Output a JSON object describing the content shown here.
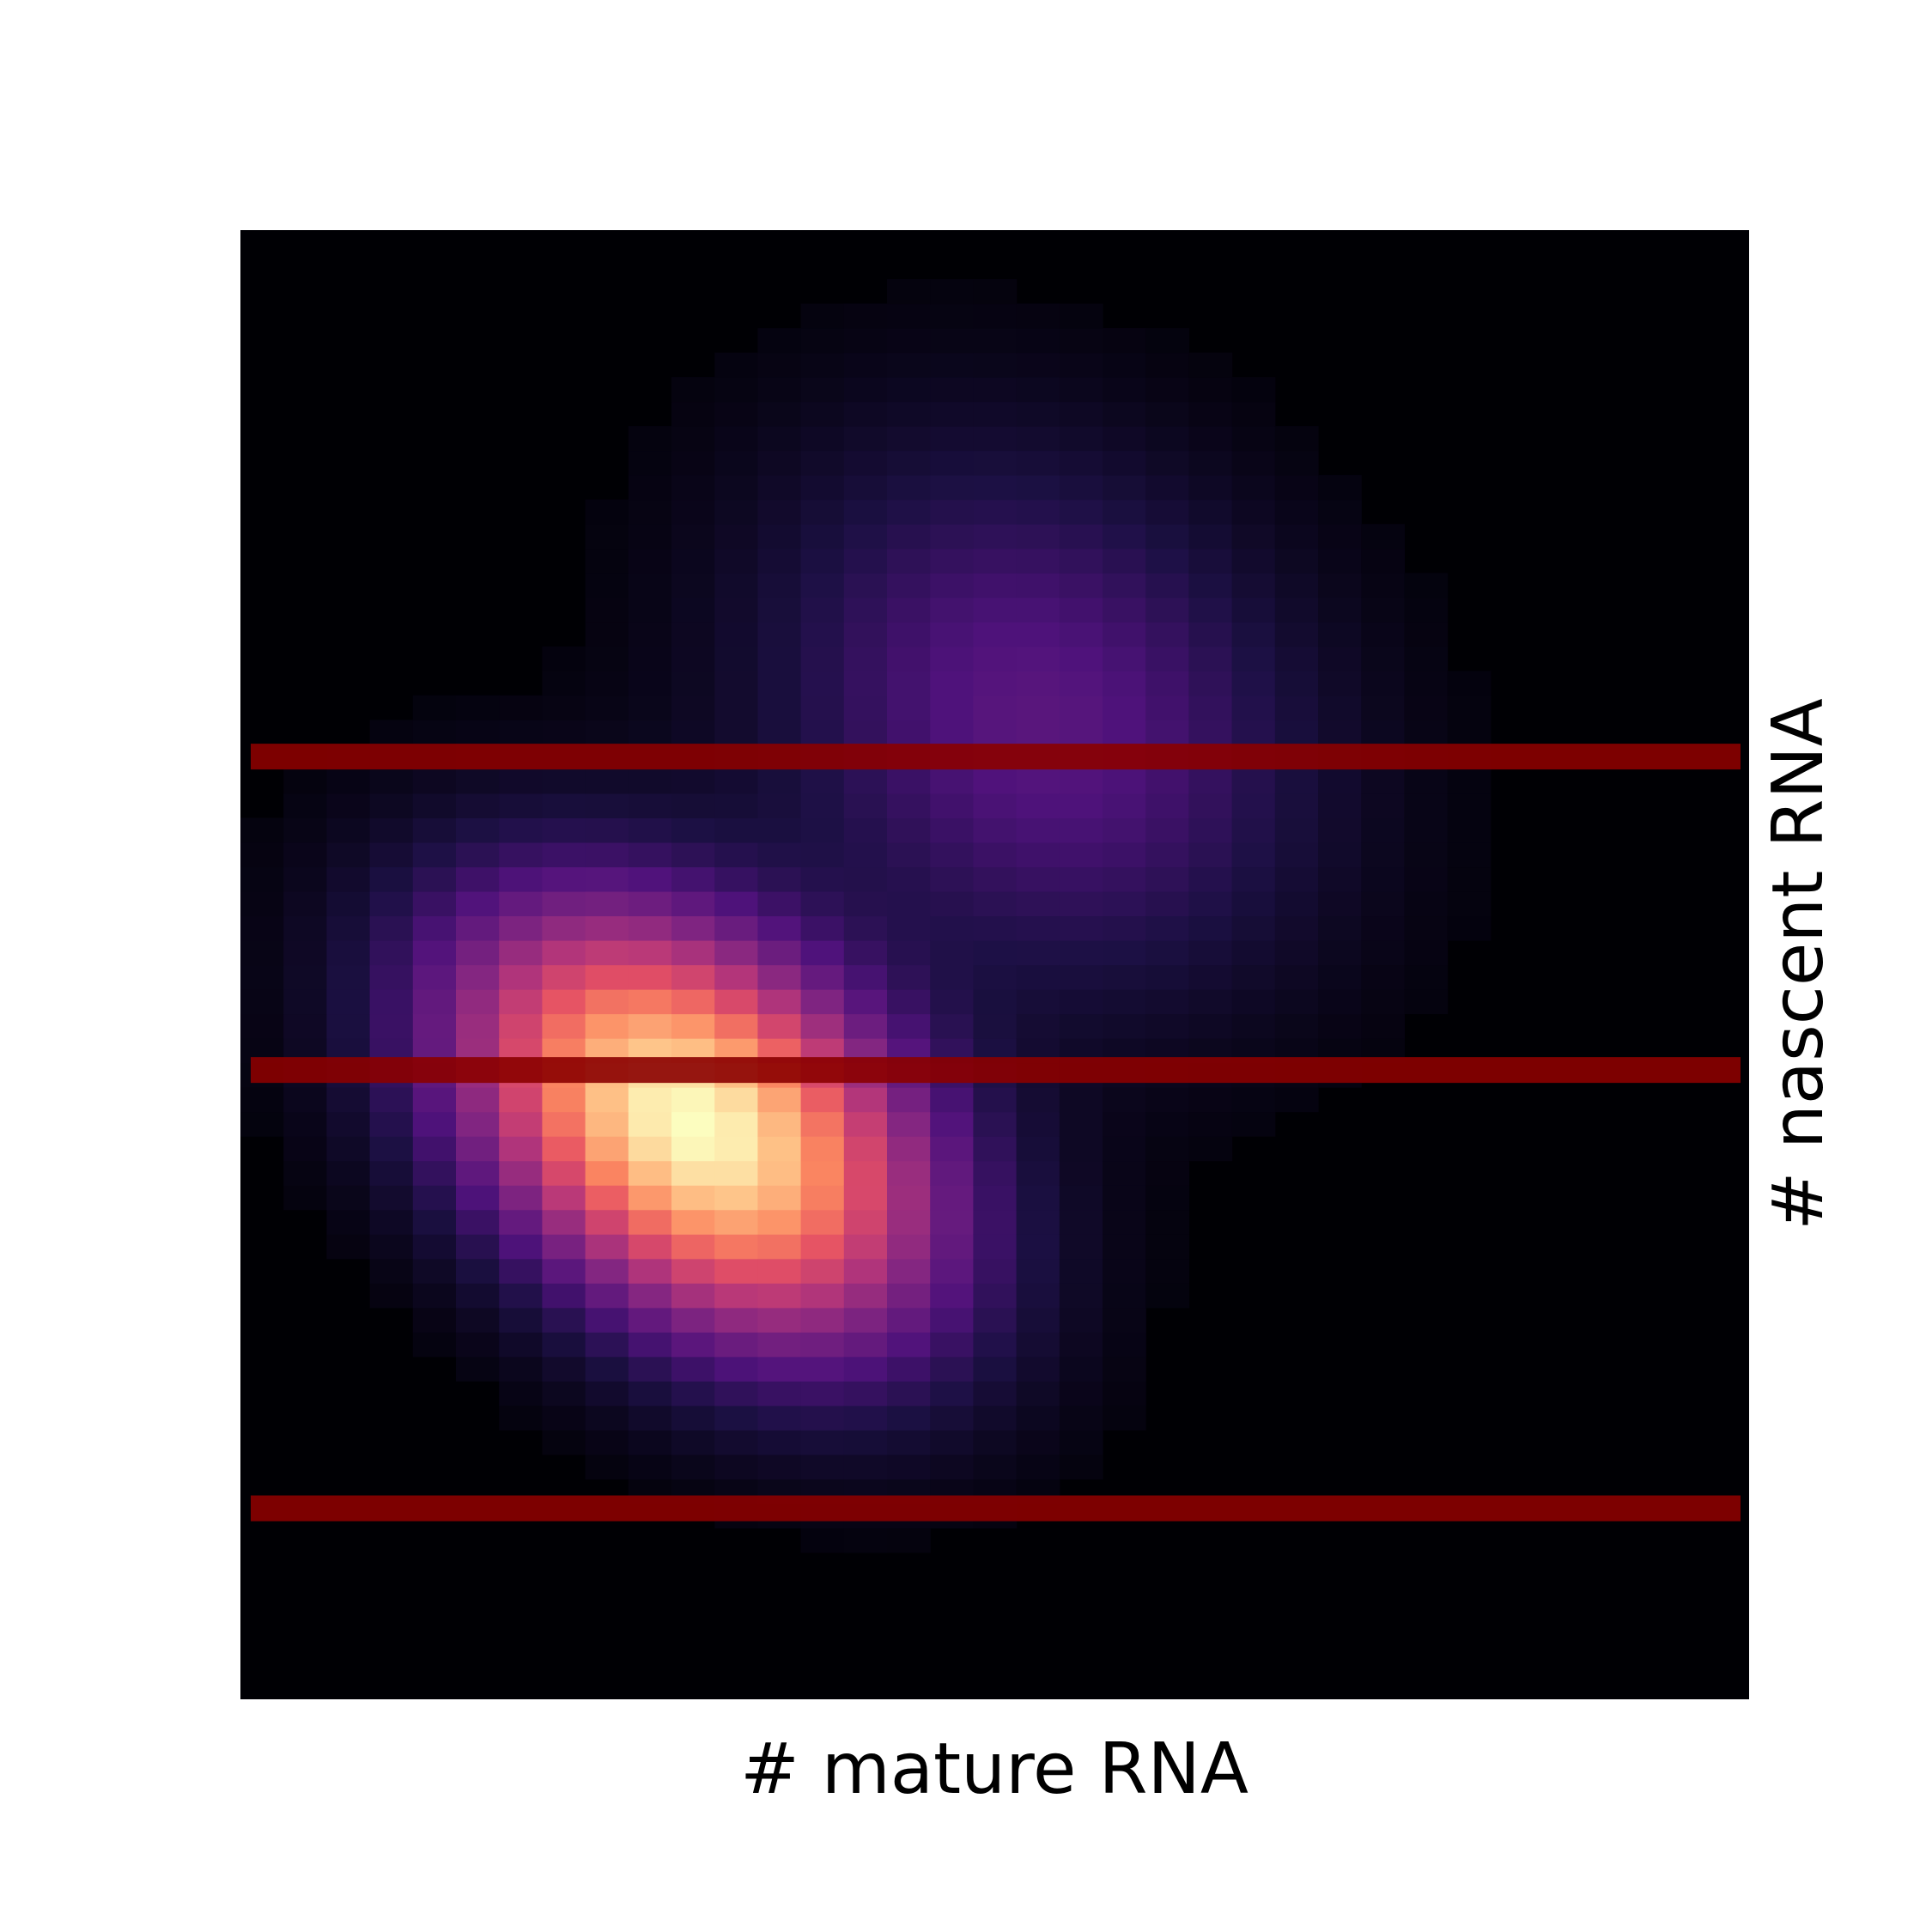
{
  "chart_data": {
    "type": "heatmap",
    "title": "",
    "xlabel": "# mature RNA",
    "ylabel": "# nascent RNA",
    "colormap": "magma",
    "grid": false,
    "ticks": false,
    "n_cols": 35,
    "n_rows": 60,
    "density_components": [
      {
        "peak": 1.0,
        "col_center": 10.5,
        "row_center": 23.5,
        "col_sigma": 3.6,
        "row_sigma": 5.2,
        "tilt": -0.62
      },
      {
        "peak": 0.22,
        "col_center": 18.5,
        "row_center": 40.0,
        "col_sigma": 4.2,
        "row_sigma": 7.0,
        "tilt": -0.35
      }
    ],
    "highlight_rows": [
      {
        "row": 38.5,
        "color": "#8b0000",
        "opacity": 0.9
      },
      {
        "row": 25.7,
        "color": "#8b0000",
        "opacity": 0.9
      },
      {
        "row": 7.8,
        "color": "#8b0000",
        "opacity": 0.9
      }
    ]
  }
}
